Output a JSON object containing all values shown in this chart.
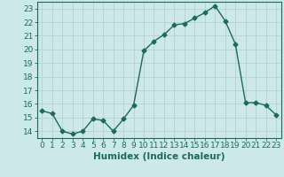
{
  "x": [
    0,
    1,
    2,
    3,
    4,
    5,
    6,
    7,
    8,
    9,
    10,
    11,
    12,
    13,
    14,
    15,
    16,
    17,
    18,
    19,
    20,
    21,
    22,
    23
  ],
  "y": [
    15.5,
    15.3,
    14.0,
    13.8,
    14.0,
    14.9,
    14.8,
    14.0,
    14.9,
    15.9,
    19.9,
    20.6,
    21.1,
    21.8,
    21.9,
    22.3,
    22.7,
    23.2,
    22.1,
    20.4,
    16.1,
    16.1,
    15.9,
    15.2
  ],
  "xlabel": "Humidex (Indice chaleur)",
  "ylim": [
    13.5,
    23.5
  ],
  "xlim": [
    -0.5,
    23.5
  ],
  "yticks": [
    14,
    15,
    16,
    17,
    18,
    19,
    20,
    21,
    22,
    23
  ],
  "xticks": [
    0,
    1,
    2,
    3,
    4,
    5,
    6,
    7,
    8,
    9,
    10,
    11,
    12,
    13,
    14,
    15,
    16,
    17,
    18,
    19,
    20,
    21,
    22,
    23
  ],
  "line_color": "#1a6b5a",
  "marker": "D",
  "marker_size": 2.5,
  "bg_color": "#cce8e8",
  "grid_color": "#b8d4d4",
  "axis_color": "#1a6b5a",
  "tick_label_color": "#1a6b5a",
  "xlabel_color": "#1a6b5a",
  "xlabel_fontsize": 7.5,
  "tick_fontsize": 6.5
}
